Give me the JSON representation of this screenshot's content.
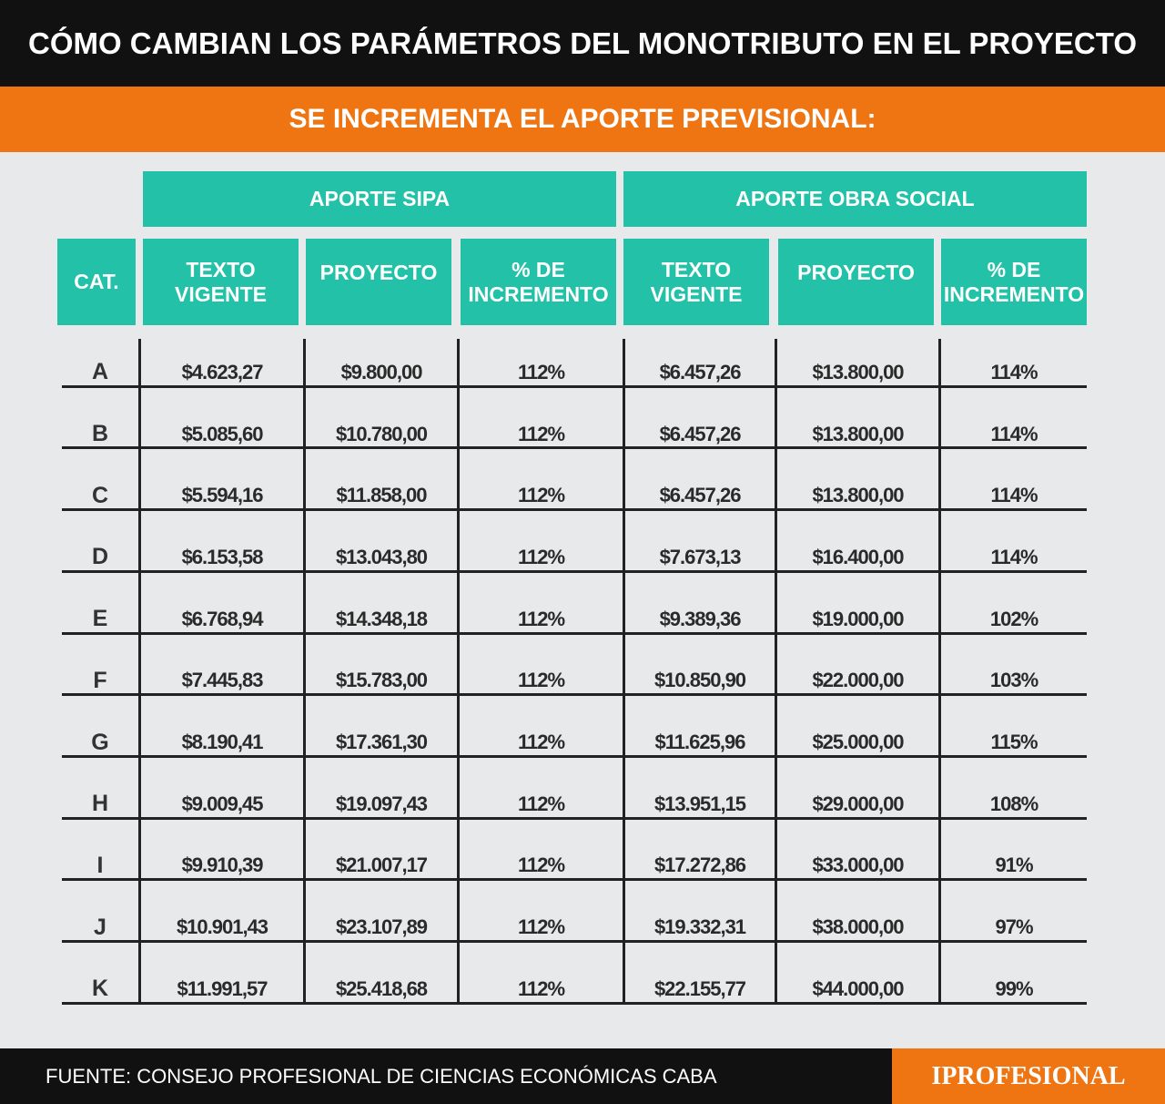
{
  "title": "CÓMO CAMBIAN LOS PARÁMETROS DEL MONOTRIBUTO EN EL PROYECTO",
  "subtitle": "SE INCREMENTA EL APORTE PREVISIONAL:",
  "groups": {
    "sipa": "APORTE SIPA",
    "obra_social": "APORTE OBRA SOCIAL"
  },
  "headers": {
    "cat": "CAT.",
    "sipa_texto": "TEXTO\nVIGENTE",
    "sipa_proyecto": "PROYECTO",
    "sipa_pct": "% DE\nINCREMENTO",
    "os_texto": "TEXTO\nVIGENTE",
    "os_proyecto": "PROYECTO",
    "os_pct": "% DE\nINCREMENTO"
  },
  "source": "FUENTE: CONSEJO PROFESIONAL DE CIENCIAS ECONÓMICAS CABA",
  "logo": "IPROFESIONAL",
  "colors": {
    "header_teal": "#22c1a8",
    "accent_orange": "#ef7512",
    "title_black": "#111111"
  },
  "chart_data": {
    "type": "table",
    "title": "CÓMO CAMBIAN LOS PARÁMETROS DEL MONOTRIBUTO EN EL PROYECTO",
    "subtitle": "SE INCREMENTA EL APORTE PREVISIONAL:",
    "rows": [
      [
        "A",
        "$4.623,27",
        "$9.800,00",
        "112%",
        "$6.457,26",
        "$13.800,00",
        "114%"
      ],
      [
        "B",
        "$5.085,60",
        "$10.780,00",
        "112%",
        "$6.457,26",
        "$13.800,00",
        "114%"
      ],
      [
        "C",
        "$5.594,16",
        "$11.858,00",
        "112%",
        "$6.457,26",
        "$13.800,00",
        "114%"
      ],
      [
        "D",
        "$6.153,58",
        "$13.043,80",
        "112%",
        "$7.673,13",
        "$16.400,00",
        "114%"
      ],
      [
        "E",
        "$6.768,94",
        "$14.348,18",
        "112%",
        "$9.389,36",
        "$19.000,00",
        "102%"
      ],
      [
        "F",
        "$7.445,83",
        "$15.783,00",
        "112%",
        "$10.850,90",
        "$22.000,00",
        "103%"
      ],
      [
        "G",
        "$8.190,41",
        "$17.361,30",
        "112%",
        "$11.625,96",
        "$25.000,00",
        "115%"
      ],
      [
        "H",
        "$9.009,45",
        "$19.097,43",
        "112%",
        "$13.951,15",
        "$29.000,00",
        "108%"
      ],
      [
        "I",
        "$9.910,39",
        "$21.007,17",
        "112%",
        "$17.272,86",
        "$33.000,00",
        "91%"
      ],
      [
        "J",
        "$10.901,43",
        "$23.107,89",
        "112%",
        "$19.332,31",
        "$38.000,00",
        "97%"
      ],
      [
        "K",
        "$11.991,57",
        "$25.418,68",
        "112%",
        "$22.155,77",
        "$44.000,00",
        "99%"
      ]
    ]
  }
}
